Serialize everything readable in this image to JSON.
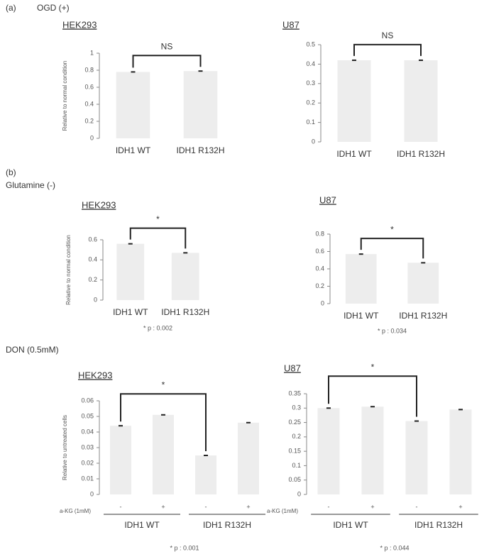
{
  "labels": {
    "a": "(a)",
    "ogd": "OGD (+)",
    "b": "(b)",
    "glutamine": "Glutamine (-)",
    "don": "DON (0.5mM)"
  },
  "chart_data": [
    {
      "type": "bar",
      "title": "HEK293",
      "ylabel": "Relative to normal condition",
      "categories": [
        "IDH1 WT",
        "IDH1 R132H"
      ],
      "values": [
        0.78,
        0.79
      ],
      "color": "#d8d8d8",
      "ylim": [
        0,
        1
      ],
      "yticks": [
        0,
        0.2,
        0.4,
        0.6,
        0.8,
        1
      ],
      "annotation": "NS"
    },
    {
      "type": "bar",
      "title": "U87",
      "categories": [
        "IDH1 WT",
        "IDH1 R132H"
      ],
      "values": [
        0.42,
        0.42
      ],
      "color": "#d8d8d8",
      "ylim": [
        0,
        0.5
      ],
      "yticks": [
        0,
        0.1,
        0.2,
        0.3,
        0.4,
        0.5
      ],
      "annotation": "NS"
    },
    {
      "type": "bar",
      "title": "HEK293",
      "ylabel": "Relative to normal condition",
      "categories": [
        "IDH1 WT",
        "IDH1 R132H"
      ],
      "values": [
        0.56,
        0.47
      ],
      "color": "#d8d8d8",
      "ylim": [
        0,
        0.6
      ],
      "yticks": [
        0,
        0.2,
        0.4,
        0.6
      ],
      "annotation": "*",
      "footnote": "* p : 0.002"
    },
    {
      "type": "bar",
      "title": "U87",
      "categories": [
        "IDH1 WT",
        "IDH1 R132H"
      ],
      "values": [
        0.57,
        0.47
      ],
      "color": "#d8d8d8",
      "ylim": [
        0,
        0.8
      ],
      "yticks": [
        0,
        0.2,
        0.4,
        0.6,
        0.8
      ],
      "annotation": "*",
      "footnote": "* p : 0.034"
    },
    {
      "type": "bar",
      "title": "HEK293",
      "ylabel": "Relative to untreated cells",
      "x_row_label": "a-KG (1mM)",
      "categories": [
        "-",
        "+",
        "-",
        "+"
      ],
      "groups": [
        "IDH1 WT",
        "IDH1 R132H"
      ],
      "values": [
        0.044,
        0.051,
        0.025,
        0.046
      ],
      "color": "#d8d8d8",
      "ylim": [
        0,
        0.06
      ],
      "yticks": [
        0,
        0.01,
        0.02,
        0.03,
        0.04,
        0.05,
        0.06
      ],
      "annotation": "*",
      "footnote": "* p : 0.001"
    },
    {
      "type": "bar",
      "title": "U87",
      "x_row_label": "a-KG (1mM)",
      "categories": [
        "-",
        "+",
        "-",
        "+"
      ],
      "groups": [
        "IDH1 WT",
        "IDH1 R132H"
      ],
      "values": [
        0.3,
        0.305,
        0.255,
        0.295
      ],
      "color": "#d8d8d8",
      "ylim": [
        0,
        0.35
      ],
      "yticks": [
        0,
        0.05,
        0.1,
        0.15,
        0.2,
        0.25,
        0.3,
        0.35
      ],
      "annotation": "*",
      "footnote": "* p : 0.044"
    }
  ]
}
